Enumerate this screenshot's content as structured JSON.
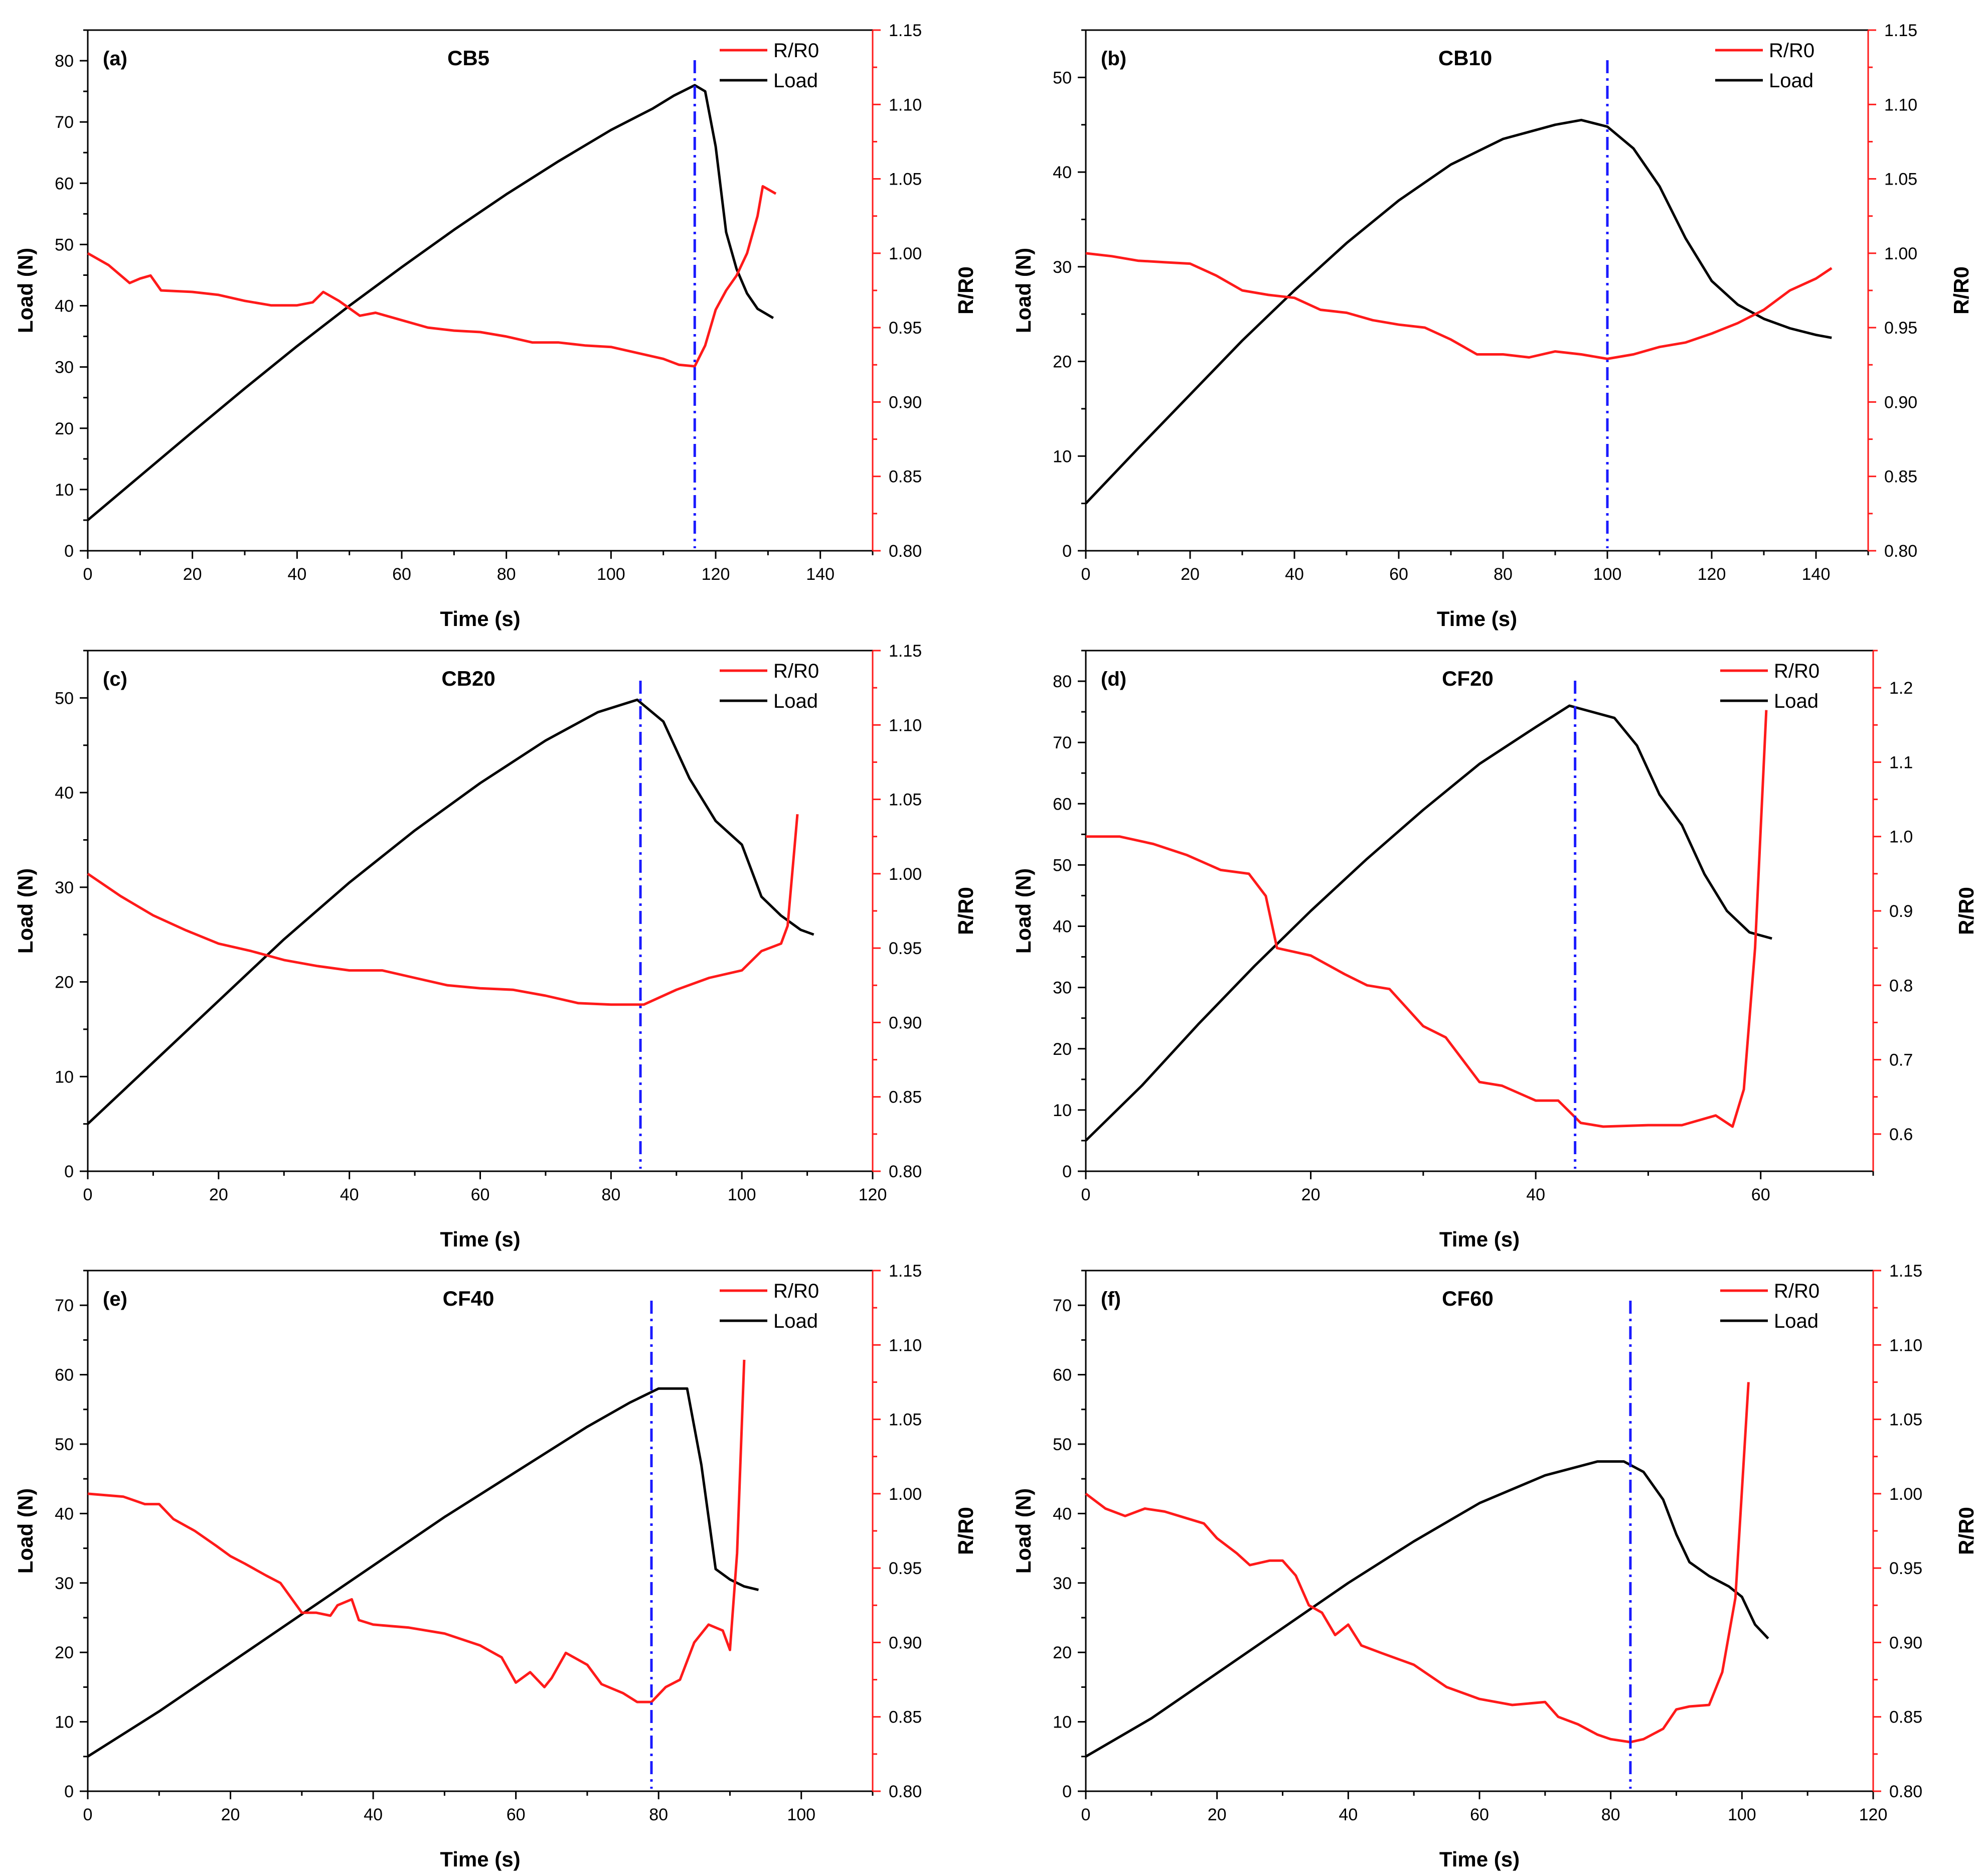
{
  "colors": {
    "load": "#000000",
    "resistance": "#ff1a1a",
    "peak_line": "#1a1aff",
    "axis": "#000000",
    "right_axis": "#ff1a1a"
  },
  "chart_data": [
    {
      "type": "line",
      "panel": "(a)",
      "title": "CB5",
      "xlabel": "Time (s)",
      "ylabel": "Load (N)",
      "y2label": "R/R0",
      "xlim": [
        0,
        150
      ],
      "xticks": [
        0,
        20,
        40,
        60,
        80,
        100,
        120,
        140
      ],
      "ylim": [
        0,
        85
      ],
      "yticks": [
        0,
        10,
        20,
        30,
        40,
        50,
        60,
        70,
        80
      ],
      "y2lim": [
        0.8,
        1.15
      ],
      "y2ticks": [
        "0.80",
        "0.85",
        "0.90",
        "0.95",
        "1.00",
        "1.05",
        "1.10",
        "1.15"
      ],
      "peak_time": 116,
      "legend": [
        "R/R0",
        "Load"
      ],
      "series": [
        {
          "name": "Load",
          "axis": "left",
          "x": [
            0,
            10,
            20,
            30,
            40,
            50,
            60,
            70,
            80,
            90,
            100,
            108,
            112,
            116,
            118,
            120,
            122,
            124,
            126,
            128,
            131
          ],
          "y": [
            5,
            12.2,
            19.4,
            26.5,
            33.4,
            40.0,
            46.3,
            52.4,
            58.2,
            63.6,
            68.7,
            72.2,
            74.3,
            76,
            75,
            66,
            52,
            46,
            42,
            39.5,
            38
          ]
        },
        {
          "name": "R/R0",
          "axis": "right",
          "x": [
            0,
            4,
            8,
            10,
            12,
            14,
            20,
            25,
            30,
            35,
            40,
            43,
            45,
            48,
            52,
            55,
            60,
            65,
            70,
            75,
            80,
            85,
            90,
            95,
            100,
            105,
            110,
            113,
            116,
            118,
            120,
            122,
            124,
            126,
            128,
            129,
            131.5
          ],
          "y": [
            1.0,
            0.992,
            0.98,
            0.983,
            0.985,
            0.975,
            0.974,
            0.972,
            0.968,
            0.965,
            0.965,
            0.967,
            0.974,
            0.968,
            0.958,
            0.96,
            0.955,
            0.95,
            0.948,
            0.947,
            0.944,
            0.94,
            0.94,
            0.938,
            0.937,
            0.933,
            0.929,
            0.925,
            0.924,
            0.938,
            0.962,
            0.975,
            0.985,
            1.0,
            1.025,
            1.045,
            1.04
          ]
        }
      ]
    },
    {
      "type": "line",
      "panel": "(b)",
      "title": "CB10",
      "xlabel": "Time (s)",
      "ylabel": "Load (N)",
      "y2label": "R/R0",
      "xlim": [
        0,
        150
      ],
      "xticks": [
        0,
        20,
        40,
        60,
        80,
        100,
        120,
        140
      ],
      "ylim": [
        0,
        55
      ],
      "yticks": [
        0,
        10,
        20,
        30,
        40,
        50
      ],
      "y2lim": [
        0.8,
        1.15
      ],
      "y2ticks": [
        "0.80",
        "0.85",
        "0.90",
        "0.95",
        "1.00",
        "1.05",
        "1.10",
        "1.15"
      ],
      "peak_time": 100,
      "legend": [
        "R/R0",
        "Load"
      ],
      "series": [
        {
          "name": "Load",
          "axis": "left",
          "x": [
            0,
            10,
            20,
            30,
            40,
            50,
            60,
            70,
            80,
            90,
            95,
            100,
            105,
            110,
            115,
            120,
            125,
            130,
            135,
            140,
            143
          ],
          "y": [
            5,
            10.8,
            16.5,
            22.2,
            27.5,
            32.5,
            37,
            40.8,
            43.5,
            45.0,
            45.5,
            44.8,
            42.5,
            38.5,
            33,
            28.5,
            26,
            24.5,
            23.5,
            22.8,
            22.5
          ]
        },
        {
          "name": "R/R0",
          "axis": "right",
          "x": [
            0,
            5,
            10,
            15,
            20,
            25,
            30,
            35,
            40,
            45,
            50,
            55,
            60,
            65,
            70,
            75,
            80,
            85,
            90,
            95,
            100,
            105,
            110,
            115,
            120,
            125,
            130,
            135,
            140,
            143
          ],
          "y": [
            1.0,
            0.998,
            0.995,
            0.994,
            0.993,
            0.985,
            0.975,
            0.972,
            0.97,
            0.962,
            0.96,
            0.955,
            0.952,
            0.95,
            0.942,
            0.932,
            0.932,
            0.93,
            0.934,
            0.932,
            0.929,
            0.932,
            0.937,
            0.94,
            0.946,
            0.953,
            0.962,
            0.975,
            0.983,
            0.99
          ]
        }
      ]
    },
    {
      "type": "line",
      "panel": "(c)",
      "title": "CB20",
      "xlabel": "Time (s)",
      "ylabel": "Load (N)",
      "y2label": "R/R0",
      "xlim": [
        0,
        120
      ],
      "xticks": [
        0,
        20,
        40,
        60,
        80,
        100,
        120
      ],
      "ylim": [
        0,
        55
      ],
      "yticks": [
        0,
        10,
        20,
        30,
        40,
        50
      ],
      "y2lim": [
        0.8,
        1.15
      ],
      "y2ticks": [
        "0.80",
        "0.85",
        "0.90",
        "0.95",
        "1.00",
        "1.05",
        "1.10",
        "1.15"
      ],
      "peak_time": 84.5,
      "legend": [
        "R/R0",
        "Load"
      ],
      "series": [
        {
          "name": "Load",
          "axis": "left",
          "x": [
            0,
            10,
            20,
            30,
            40,
            50,
            60,
            70,
            78,
            84,
            88,
            92,
            96,
            100,
            103,
            106,
            109,
            111
          ],
          "y": [
            5,
            11.5,
            18,
            24.5,
            30.5,
            36,
            41,
            45.5,
            48.5,
            49.8,
            47.5,
            41.5,
            37,
            34.5,
            29,
            27,
            25.5,
            25
          ]
        },
        {
          "name": "R/R0",
          "axis": "right",
          "x": [
            0,
            5,
            10,
            15,
            20,
            25,
            30,
            35,
            40,
            45,
            50,
            55,
            60,
            65,
            70,
            75,
            80,
            85,
            90,
            95,
            100,
            103,
            106,
            107,
            108.5
          ],
          "y": [
            1.0,
            0.985,
            0.972,
            0.962,
            0.953,
            0.948,
            0.942,
            0.938,
            0.935,
            0.935,
            0.93,
            0.925,
            0.923,
            0.922,
            0.918,
            0.913,
            0.912,
            0.912,
            0.922,
            0.93,
            0.935,
            0.948,
            0.953,
            0.965,
            1.04
          ]
        }
      ]
    },
    {
      "type": "line",
      "panel": "(d)",
      "title": "CF20",
      "xlabel": "Time (s)",
      "ylabel": "Load (N)",
      "y2label": "R/R0",
      "xlim": [
        0,
        70
      ],
      "xticks": [
        0,
        20,
        40,
        60
      ],
      "ylim": [
        0,
        85
      ],
      "yticks": [
        0,
        10,
        20,
        30,
        40,
        50,
        60,
        70,
        80
      ],
      "y2lim": [
        0.55,
        1.25
      ],
      "y2ticks": [
        "0.6",
        "0.7",
        "0.8",
        "0.9",
        "1.0",
        "1.1",
        "1.2"
      ],
      "peak_time": 43.5,
      "legend": [
        "R/R0",
        "Load"
      ],
      "series": [
        {
          "name": "Load",
          "axis": "left",
          "x": [
            0,
            5,
            10,
            15,
            20,
            25,
            30,
            35,
            40,
            43,
            45,
            47,
            49,
            51,
            53,
            55,
            57,
            59,
            61
          ],
          "y": [
            5,
            14,
            24,
            33.5,
            42.5,
            51,
            59,
            66.5,
            72.5,
            76,
            75,
            74,
            69.5,
            61.5,
            56.5,
            48.5,
            42.5,
            39,
            38
          ]
        },
        {
          "name": "R/R0",
          "axis": "right",
          "x": [
            0,
            3,
            6,
            9,
            12,
            14.5,
            16,
            17,
            20,
            23,
            25,
            27,
            30,
            32,
            35,
            37,
            40,
            42,
            44,
            46,
            50,
            53,
            56,
            57.5,
            58.5,
            59.5,
            60.5
          ],
          "y": [
            1.0,
            1.0,
            0.99,
            0.975,
            0.955,
            0.95,
            0.92,
            0.85,
            0.84,
            0.815,
            0.8,
            0.795,
            0.745,
            0.73,
            0.67,
            0.665,
            0.645,
            0.645,
            0.615,
            0.61,
            0.612,
            0.612,
            0.625,
            0.61,
            0.66,
            0.85,
            1.17
          ]
        }
      ]
    },
    {
      "type": "line",
      "panel": "(e)",
      "title": "CF40",
      "xlabel": "Time (s)",
      "ylabel": "Load (N)",
      "y2label": "R/R0",
      "xlim": [
        0,
        110
      ],
      "xticks": [
        0,
        20,
        40,
        60,
        80,
        100
      ],
      "ylim": [
        0,
        75
      ],
      "yticks": [
        0,
        10,
        20,
        30,
        40,
        50,
        60,
        70
      ],
      "y2lim": [
        0.8,
        1.15
      ],
      "y2ticks": [
        "0.80",
        "0.85",
        "0.90",
        "0.95",
        "1.00",
        "1.05",
        "1.10",
        "1.15"
      ],
      "peak_time": 79,
      "legend": [
        "R/R0",
        "Load"
      ],
      "series": [
        {
          "name": "Load",
          "axis": "left",
          "x": [
            0,
            10,
            20,
            30,
            40,
            50,
            60,
            70,
            76,
            80,
            84,
            86,
            88,
            90,
            92,
            94
          ],
          "y": [
            5,
            11.5,
            18.5,
            25.5,
            32.5,
            39.5,
            46,
            52.5,
            56,
            58,
            58,
            47,
            32,
            30.5,
            29.5,
            29
          ]
        },
        {
          "name": "R/R0",
          "axis": "right",
          "x": [
            0,
            5,
            8,
            10,
            12,
            15,
            18,
            20,
            22,
            25,
            27,
            30,
            32,
            34,
            35,
            37,
            38,
            40,
            45,
            50,
            55,
            58,
            60,
            62,
            64,
            65,
            67,
            70,
            72,
            75,
            77,
            79,
            81,
            83,
            85,
            87,
            89,
            90,
            91,
            92
          ],
          "y": [
            1.0,
            0.998,
            0.993,
            0.993,
            0.983,
            0.975,
            0.965,
            0.958,
            0.953,
            0.945,
            0.94,
            0.92,
            0.92,
            0.918,
            0.925,
            0.929,
            0.915,
            0.912,
            0.91,
            0.906,
            0.898,
            0.89,
            0.873,
            0.88,
            0.87,
            0.876,
            0.893,
            0.885,
            0.872,
            0.866,
            0.86,
            0.86,
            0.87,
            0.875,
            0.9,
            0.912,
            0.908,
            0.895,
            0.96,
            1.09
          ]
        }
      ]
    },
    {
      "type": "line",
      "panel": "(f)",
      "title": "CF60",
      "xlabel": "Time (s)",
      "ylabel": "Load (N)",
      "y2label": "R/R0",
      "xlim": [
        0,
        120
      ],
      "xticks": [
        0,
        20,
        40,
        60,
        80,
        100,
        120
      ],
      "ylim": [
        0,
        75
      ],
      "yticks": [
        0,
        10,
        20,
        30,
        40,
        50,
        60,
        70
      ],
      "y2lim": [
        0.8,
        1.15
      ],
      "y2ticks": [
        "0.80",
        "0.85",
        "0.90",
        "0.95",
        "1.00",
        "1.05",
        "1.10",
        "1.15"
      ],
      "peak_time": 83,
      "legend": [
        "R/R0",
        "Load"
      ],
      "series": [
        {
          "name": "Load",
          "axis": "left",
          "x": [
            0,
            10,
            20,
            30,
            40,
            50,
            60,
            70,
            78,
            82,
            85,
            88,
            90,
            92,
            95,
            98,
            100,
            102,
            104
          ],
          "y": [
            5,
            10.5,
            17,
            23.5,
            30,
            36,
            41.5,
            45.5,
            47.5,
            47.5,
            46,
            42,
            37,
            33,
            31,
            29.5,
            28,
            24,
            22
          ]
        },
        {
          "name": "R/R0",
          "axis": "right",
          "x": [
            0,
            3,
            6,
            9,
            12,
            15,
            18,
            20,
            23,
            25,
            28,
            30,
            32,
            34,
            36,
            38,
            40,
            42,
            45,
            50,
            55,
            60,
            65,
            70,
            72,
            75,
            78,
            80,
            83,
            85,
            88,
            90,
            92,
            95,
            97,
            99,
            101
          ],
          "y": [
            1.0,
            0.99,
            0.985,
            0.99,
            0.988,
            0.984,
            0.98,
            0.97,
            0.96,
            0.952,
            0.955,
            0.955,
            0.945,
            0.925,
            0.92,
            0.905,
            0.912,
            0.898,
            0.893,
            0.885,
            0.87,
            0.862,
            0.858,
            0.86,
            0.85,
            0.845,
            0.838,
            0.835,
            0.833,
            0.835,
            0.842,
            0.855,
            0.857,
            0.858,
            0.88,
            0.93,
            1.075
          ]
        }
      ]
    }
  ]
}
